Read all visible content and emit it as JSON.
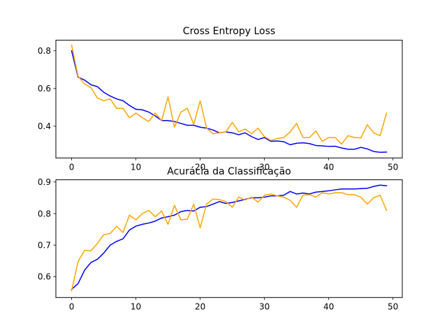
{
  "chart_data": [
    {
      "type": "line",
      "title": "Cross Entropy Loss",
      "xlabel": "",
      "ylabel": "",
      "xlim": [
        -2.45,
        51.45
      ],
      "ylim": [
        0.232,
        0.856
      ],
      "xticks": [
        0,
        10,
        20,
        30,
        40,
        50
      ],
      "yticks": [
        0.4,
        0.6,
        0.8
      ],
      "ytick_labels": [
        "0.4",
        "0.6",
        "0.8"
      ],
      "grid": false,
      "legend": "none",
      "series": [
        {
          "color": "#0000ff",
          "x": [
            0,
            1,
            2,
            3,
            4,
            5,
            6,
            7,
            8,
            9,
            10,
            11,
            12,
            13,
            14,
            15,
            16,
            17,
            18,
            19,
            20,
            21,
            22,
            23,
            24,
            25,
            26,
            27,
            28,
            29,
            30,
            31,
            32,
            33,
            34,
            35,
            36,
            37,
            38,
            39,
            40,
            41,
            42,
            43,
            44,
            45,
            46,
            47,
            48,
            49
          ],
          "values": [
            0.8,
            0.66,
            0.645,
            0.62,
            0.61,
            0.58,
            0.56,
            0.545,
            0.535,
            0.51,
            0.49,
            0.487,
            0.475,
            0.455,
            0.43,
            0.43,
            0.425,
            0.415,
            0.405,
            0.405,
            0.395,
            0.39,
            0.38,
            0.365,
            0.37,
            0.365,
            0.355,
            0.365,
            0.345,
            0.33,
            0.34,
            0.32,
            0.322,
            0.318,
            0.302,
            0.31,
            0.312,
            0.308,
            0.298,
            0.296,
            0.293,
            0.294,
            0.285,
            0.278,
            0.278,
            0.288,
            0.28,
            0.266,
            0.262,
            0.263
          ]
        },
        {
          "color": "#ffa500",
          "x": [
            0,
            1,
            2,
            3,
            4,
            5,
            6,
            7,
            8,
            9,
            10,
            11,
            12,
            13,
            14,
            15,
            16,
            17,
            18,
            19,
            20,
            21,
            22,
            23,
            24,
            25,
            26,
            27,
            28,
            29,
            30,
            31,
            32,
            33,
            34,
            35,
            36,
            37,
            38,
            39,
            40,
            41,
            42,
            43,
            44,
            45,
            46,
            47,
            48,
            49
          ],
          "values": [
            0.83,
            0.665,
            0.625,
            0.605,
            0.55,
            0.535,
            0.545,
            0.495,
            0.495,
            0.445,
            0.47,
            0.445,
            0.425,
            0.47,
            0.43,
            0.555,
            0.395,
            0.475,
            0.495,
            0.41,
            0.535,
            0.39,
            0.36,
            0.365,
            0.37,
            0.42,
            0.37,
            0.385,
            0.36,
            0.39,
            0.345,
            0.325,
            0.335,
            0.34,
            0.37,
            0.415,
            0.34,
            0.34,
            0.375,
            0.32,
            0.34,
            0.34,
            0.305,
            0.35,
            0.34,
            0.338,
            0.408,
            0.365,
            0.35,
            0.47
          ]
        }
      ]
    },
    {
      "type": "line",
      "title": "Acurácia  da Classificação",
      "xlabel": "",
      "ylabel": "",
      "xlim": [
        -2.45,
        51.45
      ],
      "ylim": [
        0.534,
        0.907
      ],
      "xticks": [
        0,
        10,
        20,
        30,
        40,
        50
      ],
      "yticks": [
        0.6,
        0.7,
        0.8,
        0.9
      ],
      "ytick_labels": [
        "0.6",
        "0.7",
        "0.8",
        "0.9"
      ],
      "grid": false,
      "legend": "none",
      "series": [
        {
          "color": "#0000ff",
          "x": [
            0,
            1,
            2,
            3,
            4,
            5,
            6,
            7,
            8,
            9,
            10,
            11,
            12,
            13,
            14,
            15,
            16,
            17,
            18,
            19,
            20,
            21,
            22,
            23,
            24,
            25,
            26,
            27,
            28,
            29,
            30,
            31,
            32,
            33,
            34,
            35,
            36,
            37,
            38,
            39,
            40,
            41,
            42,
            43,
            44,
            45,
            46,
            47,
            48,
            49
          ],
          "values": [
            0.56,
            0.578,
            0.62,
            0.645,
            0.655,
            0.675,
            0.7,
            0.712,
            0.72,
            0.748,
            0.76,
            0.766,
            0.77,
            0.776,
            0.786,
            0.79,
            0.795,
            0.806,
            0.81,
            0.808,
            0.82,
            0.822,
            0.83,
            0.838,
            0.832,
            0.835,
            0.84,
            0.845,
            0.85,
            0.85,
            0.852,
            0.856,
            0.856,
            0.858,
            0.87,
            0.862,
            0.865,
            0.862,
            0.868,
            0.87,
            0.872,
            0.875,
            0.878,
            0.878,
            0.878,
            0.879,
            0.88,
            0.886,
            0.89,
            0.888
          ]
        },
        {
          "color": "#ffa500",
          "x": [
            0,
            1,
            2,
            3,
            4,
            5,
            6,
            7,
            8,
            9,
            10,
            11,
            12,
            13,
            14,
            15,
            16,
            17,
            18,
            19,
            20,
            21,
            22,
            23,
            24,
            25,
            26,
            27,
            28,
            29,
            30,
            31,
            32,
            33,
            34,
            35,
            36,
            37,
            38,
            39,
            40,
            41,
            42,
            43,
            44,
            45,
            46,
            47,
            48,
            49
          ],
          "values": [
            0.555,
            0.648,
            0.683,
            0.682,
            0.705,
            0.733,
            0.737,
            0.76,
            0.74,
            0.795,
            0.78,
            0.8,
            0.81,
            0.79,
            0.808,
            0.766,
            0.826,
            0.78,
            0.782,
            0.83,
            0.755,
            0.83,
            0.846,
            0.844,
            0.838,
            0.82,
            0.852,
            0.843,
            0.852,
            0.836,
            0.858,
            0.862,
            0.856,
            0.852,
            0.842,
            0.82,
            0.858,
            0.86,
            0.852,
            0.866,
            0.862,
            0.866,
            0.866,
            0.86,
            0.86,
            0.852,
            0.83,
            0.85,
            0.858,
            0.81
          ]
        }
      ]
    }
  ]
}
